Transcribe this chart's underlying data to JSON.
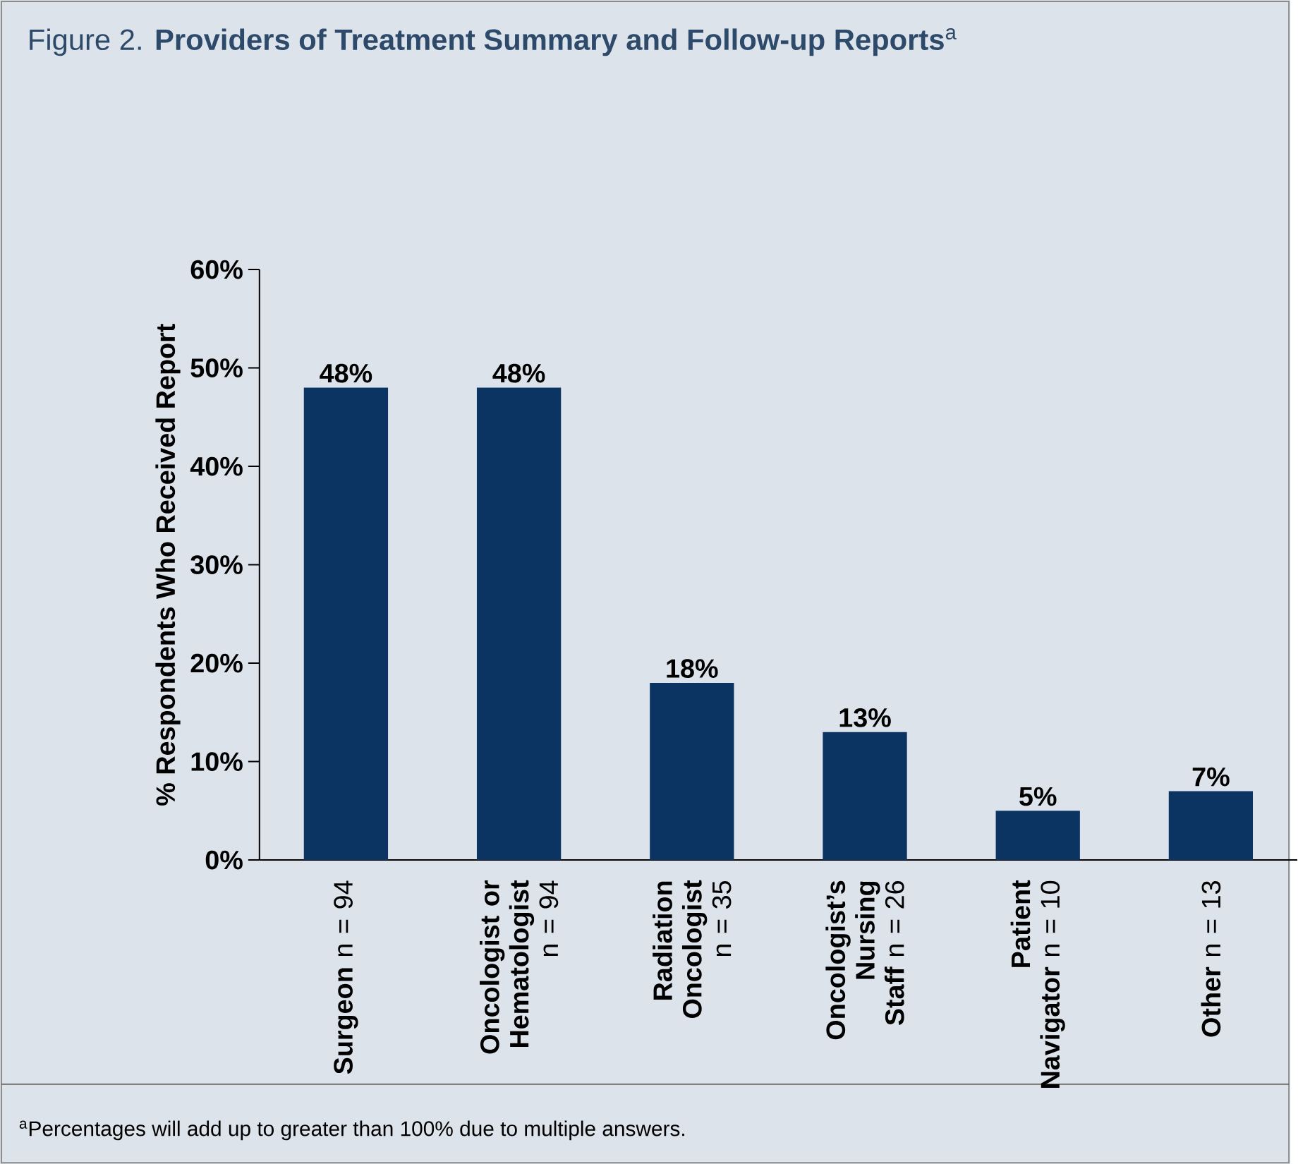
{
  "chart_data": {
    "type": "bar",
    "title": "Figure 2. **Providers of Treatment Summary and Follow-up Reports**$^{a}$",
    "ylabel": "% Respondents Who Received Report",
    "categories": [
      "**Surgeon** n = 94",
      "**Oncologist or Hematologist** n = 94",
      "**Radiation Oncologist** n = 35",
      "**Oncologist’s Nursing Staff** n = 26",
      "**Patient Navigator** n = 10",
      "**Other** n = 13"
    ],
    "values": [
      48,
      48,
      18,
      13,
      5,
      7
    ],
    "value_labels": [
      "48%",
      "48%",
      "18%",
      "13%",
      "5%",
      "7%"
    ],
    "color": "#0b3463",
    "ylim": [
      0,
      60
    ],
    "yticks": [
      {
        "value": 0,
        "label": "0%"
      },
      {
        "value": 10,
        "label": "10%"
      },
      {
        "value": 20,
        "label": "20%"
      },
      {
        "value": 30,
        "label": "30%"
      },
      {
        "value": 40,
        "label": "40%"
      },
      {
        "value": 50,
        "label": "50%"
      },
      {
        "value": 60,
        "label": "60%"
      }
    ],
    "annotations": [
      "$^{a}$Percentages will add up to greater than 100% due to multiple answers."
    ]
  }
}
